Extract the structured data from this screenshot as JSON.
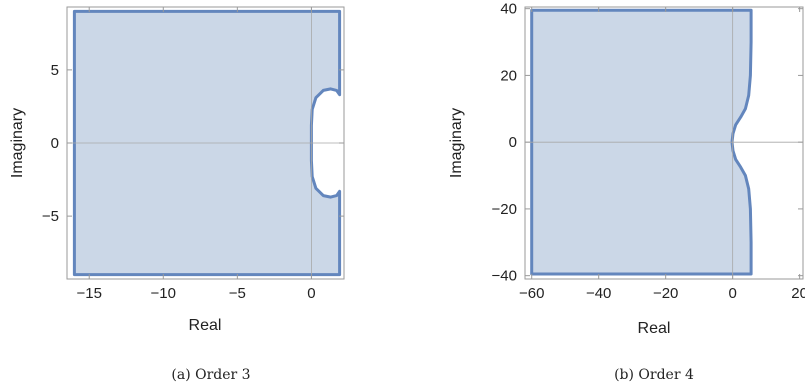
{
  "chart_data": [
    {
      "type": "area",
      "caption": "(a) Order 3",
      "xlabel": "Real",
      "ylabel": "Imaginary",
      "xlim": [
        -16.5,
        2.2
      ],
      "ylim": [
        -9.3,
        9.3
      ],
      "xticks": [
        {
          "value": -15,
          "label": "−15"
        },
        {
          "value": -10,
          "label": "−10"
        },
        {
          "value": -5,
          "label": "−5"
        },
        {
          "value": 0,
          "label": "0"
        }
      ],
      "yticks": [
        {
          "value": -5,
          "label": "−5"
        },
        {
          "value": 0,
          "label": "0"
        },
        {
          "value": 5,
          "label": "5"
        }
      ],
      "fill_color": "#cbd7e7",
      "edge_color": "#6386bd",
      "boundary": [
        [
          -16,
          9
        ],
        [
          1.9,
          9
        ],
        [
          1.9,
          3.3
        ],
        [
          1.7,
          3.6
        ],
        [
          1.3,
          3.7
        ],
        [
          0.8,
          3.6
        ],
        [
          0.3,
          3.1
        ],
        [
          0.05,
          2.3
        ],
        [
          0.0,
          1.2
        ],
        [
          0.0,
          0
        ],
        [
          0.0,
          -1.2
        ],
        [
          0.05,
          -2.3
        ],
        [
          0.3,
          -3.1
        ],
        [
          0.8,
          -3.6
        ],
        [
          1.3,
          -3.7
        ],
        [
          1.7,
          -3.6
        ],
        [
          1.9,
          -3.3
        ],
        [
          1.9,
          -9
        ],
        [
          -16,
          -9
        ]
      ]
    },
    {
      "type": "area",
      "caption": "(b) Order 4",
      "xlabel": "Real",
      "ylabel": "Imaginary",
      "xlim": [
        -62,
        21
      ],
      "ylim": [
        -41,
        40.5
      ],
      "xticks": [
        {
          "value": -60,
          "label": "−60"
        },
        {
          "value": -40,
          "label": "−40"
        },
        {
          "value": -20,
          "label": "−20"
        },
        {
          "value": 0,
          "label": "0"
        },
        {
          "value": 20,
          "label": "20"
        }
      ],
      "yticks": [
        {
          "value": -40,
          "label": "−40"
        },
        {
          "value": -20,
          "label": "−20"
        },
        {
          "value": 0,
          "label": "0"
        },
        {
          "value": 20,
          "label": "20"
        },
        {
          "value": 40,
          "label": "40"
        }
      ],
      "fill_color": "#cbd7e7",
      "edge_color": "#6386bd",
      "boundary": [
        [
          -60,
          39.5
        ],
        [
          5.5,
          39.5
        ],
        [
          5.5,
          30
        ],
        [
          5.3,
          20
        ],
        [
          4.8,
          14
        ],
        [
          3.8,
          10
        ],
        [
          2.4,
          7.5
        ],
        [
          0.9,
          5.2
        ],
        [
          0.1,
          2.6
        ],
        [
          -0.2,
          0
        ],
        [
          0.1,
          -2.6
        ],
        [
          0.9,
          -5.2
        ],
        [
          2.4,
          -7.5
        ],
        [
          3.8,
          -10
        ],
        [
          4.8,
          -14
        ],
        [
          5.3,
          -20
        ],
        [
          5.5,
          -30
        ],
        [
          5.5,
          -39.5
        ],
        [
          -60,
          -39.5
        ]
      ]
    }
  ]
}
